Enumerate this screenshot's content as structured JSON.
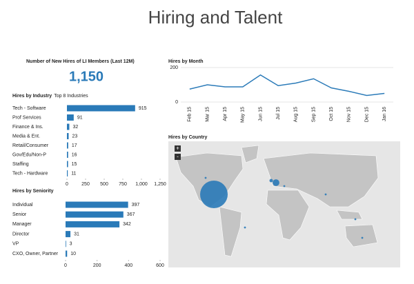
{
  "title": "Hiring and Talent",
  "kpi": {
    "title": "Number of New Hires of LI Members (Last 12M)",
    "value": "1,150"
  },
  "chart_data": [
    {
      "type": "hbar",
      "title": "Hires by Industry",
      "subtitle": "Top 8 Industries",
      "color": "#2a7ab8",
      "categories": [
        "Tech - Software",
        "Prof Services",
        "Finance & Ins.",
        "Media & Ent.",
        "Retail/Consumer",
        "Gov/Edu/Non-P",
        "Staffing",
        "Tech - Hardware"
      ],
      "values": [
        915,
        91,
        32,
        23,
        17,
        16,
        15,
        11
      ],
      "xlim": [
        0,
        1250
      ],
      "xticks": [
        0,
        250,
        500,
        750,
        {
          "value": 1000,
          "label": "1,000"
        },
        {
          "value": 1250,
          "label": "1,250"
        }
      ]
    },
    {
      "type": "hbar",
      "title": "Hires by Seniority",
      "color": "#2a7ab8",
      "categories": [
        "Individual",
        "Senior",
        "Manager",
        "Director",
        "VP",
        "CXO, Owner, Partner"
      ],
      "values": [
        397,
        367,
        342,
        31,
        3,
        10
      ],
      "xlim": [
        0,
        600
      ],
      "xticks": [
        0,
        200,
        400,
        600
      ]
    },
    {
      "type": "line",
      "title": "Hires by Month",
      "color": "#2a7ab8",
      "categories": [
        "Feb 15",
        "Mar 15",
        "Apr 15",
        "May 15",
        "Jun 15",
        "Jul 15",
        "Aug 15",
        "Sep 15",
        "Oct 15",
        "Nov 15",
        "Dec 15",
        "Jan 16"
      ],
      "values": [
        75,
        100,
        88,
        88,
        157,
        95,
        110,
        135,
        82,
        62,
        38,
        50
      ],
      "ylim": [
        0,
        200
      ],
      "yticks": [
        0,
        200
      ]
    },
    {
      "type": "bubble-map",
      "title": "Hires by Country",
      "color": "#2a7ab8",
      "values": [
        1000,
        60,
        15,
        5,
        5,
        5,
        5,
        5,
        5
      ]
    }
  ]
}
